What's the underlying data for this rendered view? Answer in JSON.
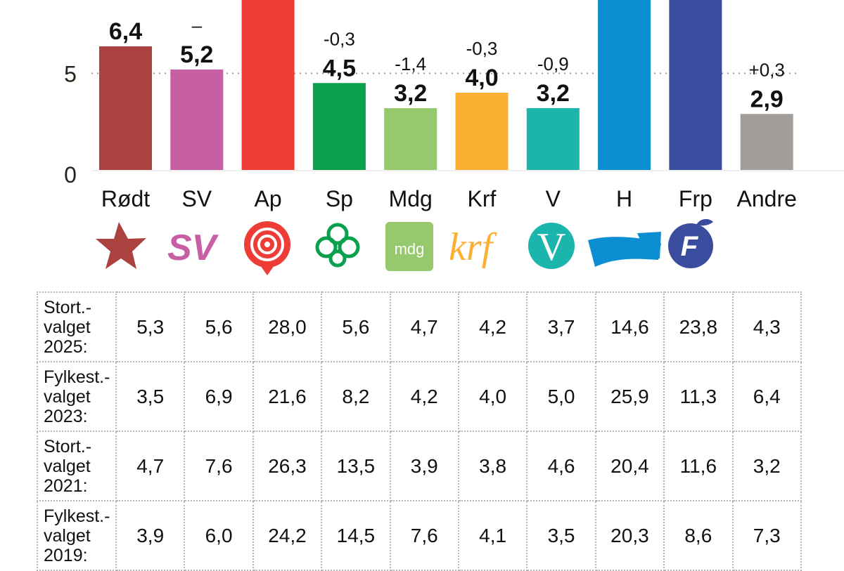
{
  "chart_data": {
    "type": "bar",
    "title": "",
    "xlabel": "",
    "ylabel": "",
    "yticks": [
      0,
      5
    ],
    "ylim": [
      0,
      10
    ],
    "grid": true,
    "categories": [
      "Rødt",
      "SV",
      "Ap",
      "Sp",
      "Mdg",
      "Krf",
      "V",
      "H",
      "Frp",
      "Andre"
    ],
    "values": [
      6.4,
      5.2,
      null,
      4.5,
      3.2,
      4.0,
      3.2,
      null,
      null,
      2.9
    ],
    "value_labels": [
      "6,4",
      "5,2",
      "",
      "4,5",
      "3,2",
      "4,0",
      "3,2",
      "",
      "",
      "2,9"
    ],
    "change_labels": [
      "",
      "–",
      "",
      "-0,3",
      "-1,4",
      "-0,3",
      "-0,9",
      "",
      "",
      "+0,3"
    ],
    "colors": [
      "#ac4240",
      "#c65fa3",
      "#ee3c37",
      "#0ba04e",
      "#96c86e",
      "#fbb034",
      "#1bb5ad",
      "#0b8ed2",
      "#3a4c9e",
      "#a39e99"
    ]
  },
  "table": {
    "rows": [
      {
        "label": [
          "Stort.-",
          "valget",
          "2025:"
        ],
        "values": [
          "5,3",
          "5,6",
          "28,0",
          "5,6",
          "4,7",
          "4,2",
          "3,7",
          "14,6",
          "23,8",
          "4,3"
        ]
      },
      {
        "label": [
          "Fylkest.-",
          "valget",
          "2023:"
        ],
        "values": [
          "3,5",
          "6,9",
          "21,6",
          "8,2",
          "4,2",
          "4,0",
          "5,0",
          "25,9",
          "11,3",
          "6,4"
        ]
      },
      {
        "label": [
          "Stort.-",
          "valget",
          "2021:"
        ],
        "values": [
          "4,7",
          "7,6",
          "26,3",
          "13,5",
          "3,9",
          "3,8",
          "4,6",
          "20,4",
          "11,6",
          "3,2"
        ]
      },
      {
        "label": [
          "Fylkest.-",
          "valget",
          "2019:"
        ],
        "values": [
          "3,9",
          "6,0",
          "24,2",
          "14,5",
          "7,6",
          "4,1",
          "3,5",
          "20,3",
          "8,6",
          "7,3"
        ]
      }
    ]
  },
  "logos": [
    "rodt-star-icon",
    "sv-logo-icon",
    "ap-rose-icon",
    "sp-clover-icon",
    "mdg-logo-icon",
    "krf-logo-icon",
    "venstre-v-icon",
    "hoyre-arrow-icon",
    "frp-apple-icon",
    null
  ],
  "logo_text": {
    "sv": "SV",
    "mdg": "mdg",
    "krf": "krf",
    "v": "V",
    "frp": "F"
  }
}
